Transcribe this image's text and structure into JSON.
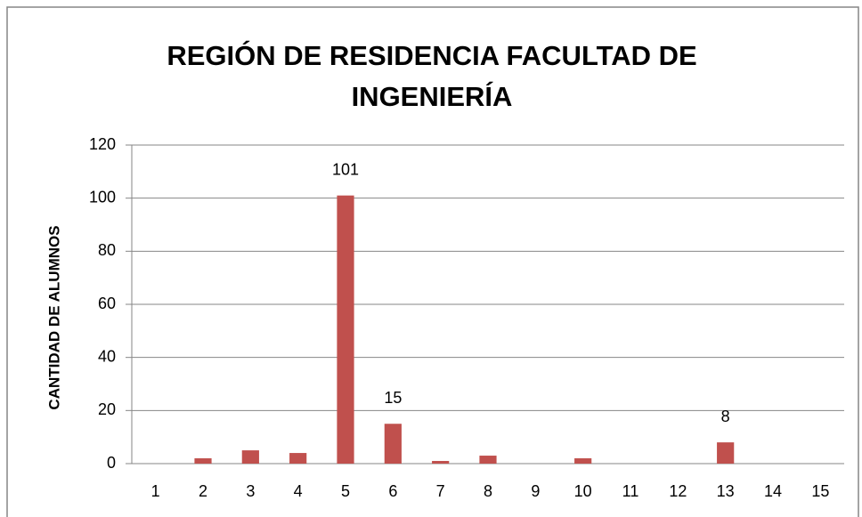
{
  "chart_data": {
    "type": "bar",
    "title": "REGIÓN DE RESIDENCIA FACULTAD DE INGENIERÍA",
    "y_label": "CANTIDAD DE ALUMNOS",
    "categories": [
      "1",
      "2",
      "3",
      "4",
      "5",
      "6",
      "7",
      "8",
      "9",
      "10",
      "11",
      "12",
      "13",
      "14",
      "15"
    ],
    "values": [
      0,
      2,
      5,
      4,
      101,
      15,
      1,
      3,
      0,
      2,
      0,
      0,
      8,
      0,
      0
    ],
    "value_labels": [
      null,
      null,
      null,
      null,
      "101",
      "15",
      null,
      null,
      null,
      null,
      null,
      null,
      "8",
      null,
      null
    ],
    "color": "#c0504d",
    "ylim": [
      0,
      120
    ],
    "yticks": [
      0,
      20,
      40,
      60,
      80,
      100,
      120
    ],
    "grid": true
  }
}
